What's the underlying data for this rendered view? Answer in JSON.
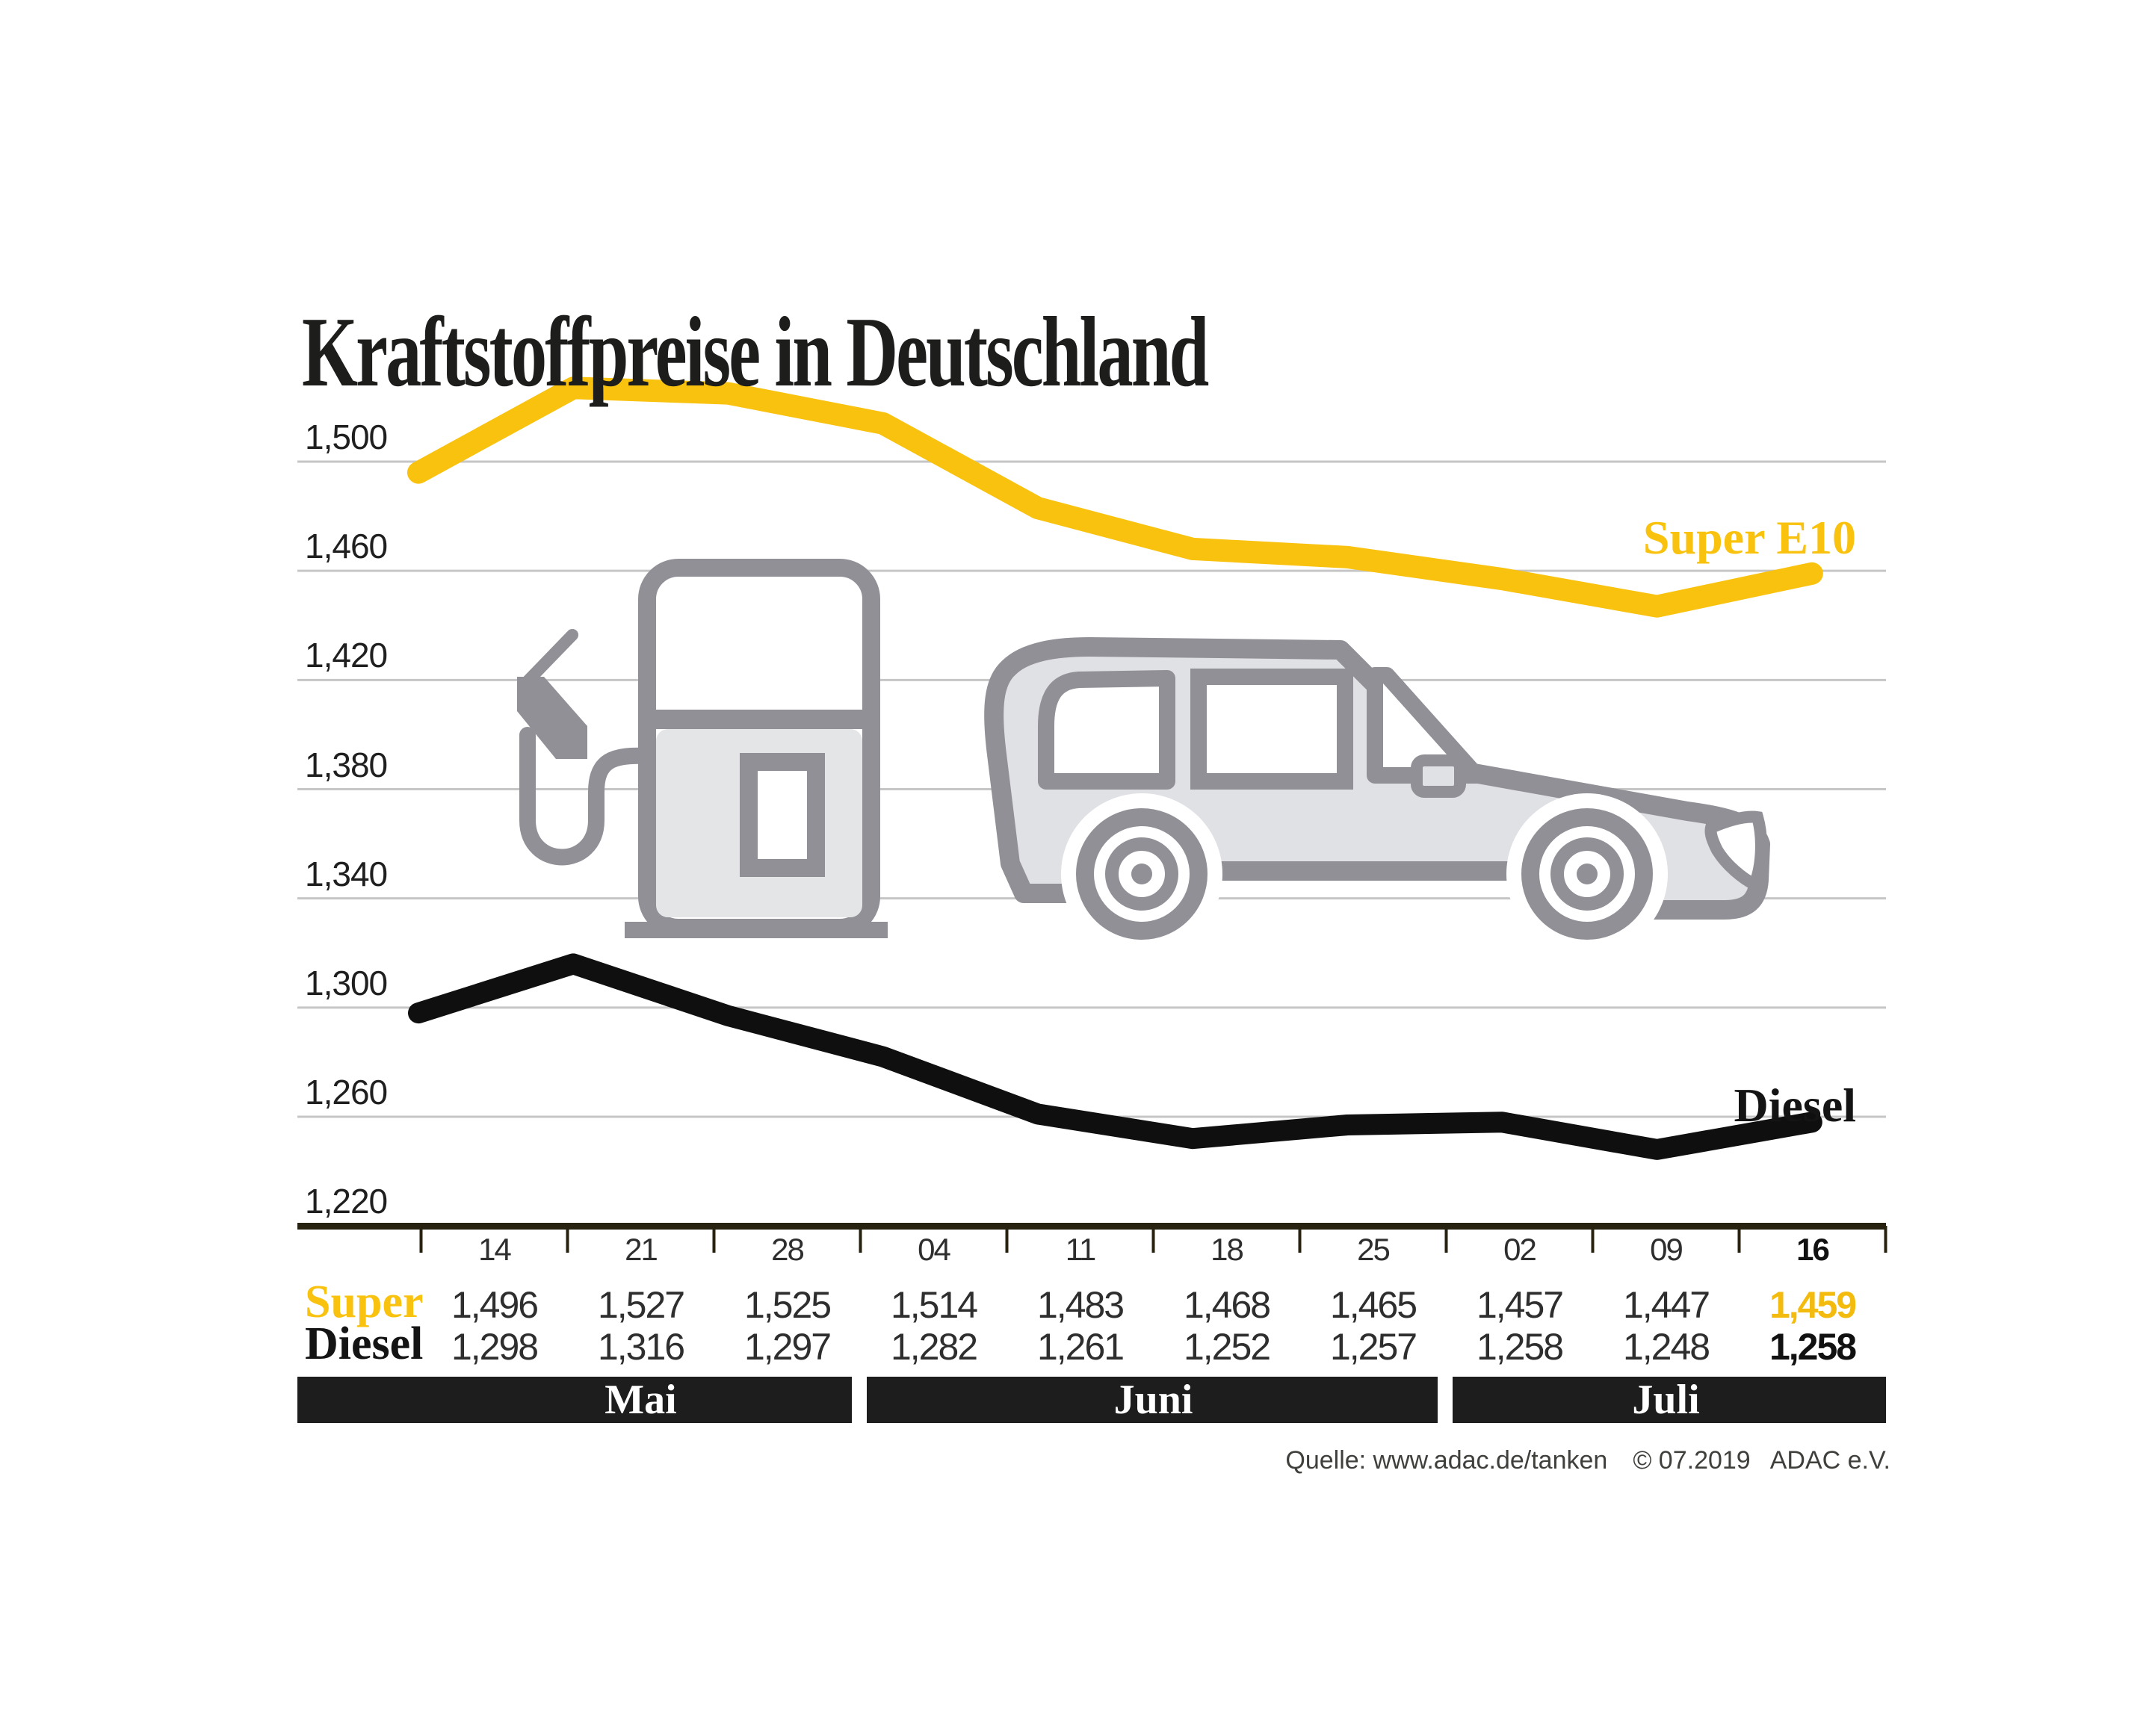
{
  "title": "Kraftstoffpreise in Deutschland",
  "chart_data": {
    "type": "line",
    "title": "Kraftstoffpreise in Deutschland",
    "x_categories": [
      "14",
      "21",
      "28",
      "04",
      "11",
      "18",
      "25",
      "02",
      "09",
      "16"
    ],
    "month_groups": [
      {
        "label": "Mai",
        "columns": 3
      },
      {
        "label": "Juni",
        "columns": 4
      },
      {
        "label": "Juli",
        "columns": 3
      }
    ],
    "series": [
      {
        "name": "Super E10",
        "color": "#F8C20F",
        "values": [
          1496,
          1527,
          1525,
          1514,
          1483,
          1468,
          1465,
          1457,
          1447,
          1459
        ]
      },
      {
        "name": "Diesel",
        "color": "#0f0f0f",
        "values": [
          1298,
          1316,
          1297,
          1282,
          1261,
          1252,
          1257,
          1258,
          1248,
          1258
        ]
      }
    ],
    "y_ticks": [
      {
        "label": "1,500",
        "value": 1500
      },
      {
        "label": "1,460",
        "value": 1460
      },
      {
        "label": "1,420",
        "value": 1420
      },
      {
        "label": "1,380",
        "value": 1380
      },
      {
        "label": "1,340",
        "value": 1340
      },
      {
        "label": "1,300",
        "value": 1300
      },
      {
        "label": "1,260",
        "value": 1260
      },
      {
        "label": "1,220",
        "value": 1220
      }
    ],
    "ylim": [
      1220,
      1540
    ],
    "grid": true,
    "legend_position": "line-end labels right"
  },
  "series_labels": {
    "super": "Super E10",
    "diesel": "Diesel"
  },
  "table": {
    "row_labels": {
      "super": "Super",
      "diesel": "Diesel"
    },
    "super_values": [
      "1,496",
      "1,527",
      "1,525",
      "1,514",
      "1,483",
      "1,468",
      "1,465",
      "1,457",
      "1,447",
      "1,459"
    ],
    "diesel_values": [
      "1,298",
      "1,316",
      "1,297",
      "1,282",
      "1,261",
      "1,252",
      "1,257",
      "1,258",
      "1,248",
      "1,258"
    ]
  },
  "source": {
    "quelle": "Quelle: www.adac.de/tanken",
    "copyright": "© 07.2019",
    "org": "ADAC e.V."
  },
  "colors": {
    "super_yellow": "#F8C20F",
    "diesel_black": "#0f0f0f",
    "month_bar": "#1d1d1d",
    "axis": "#26220f",
    "gridline": "#c6c6c6",
    "icon_gray": "#909096",
    "icon_fill": "#e0e1e4"
  },
  "icons": [
    "fuel-pump-icon",
    "car-icon"
  ]
}
